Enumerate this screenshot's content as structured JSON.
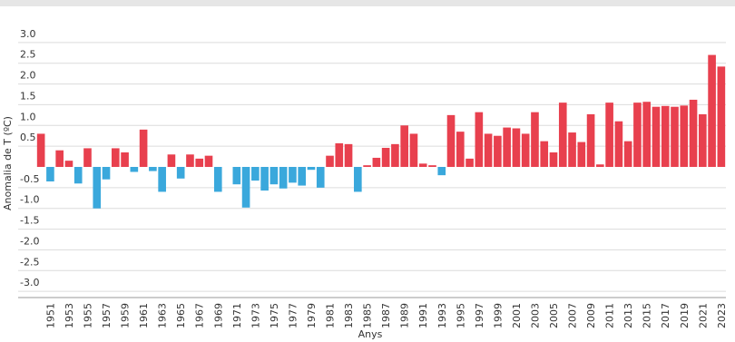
{
  "chart_data": {
    "type": "bar",
    "y_label": "Anomalia de T (ºC)",
    "x_label": "Anys",
    "categories": [
      null,
      "1951",
      null,
      "1953",
      null,
      "1955",
      null,
      "1957",
      null,
      "1959",
      null,
      "1961",
      null,
      "1963",
      null,
      "1965",
      null,
      "1967",
      null,
      "1969",
      null,
      "1971",
      null,
      "1973",
      null,
      "1975",
      null,
      "1977",
      null,
      "1979",
      null,
      "1981",
      null,
      "1983",
      null,
      "1985",
      null,
      "1987",
      null,
      "1989",
      null,
      "1991",
      null,
      "1993",
      null,
      "1995",
      null,
      "1997",
      null,
      "1999",
      null,
      "2001",
      null,
      "2003",
      null,
      "2005",
      null,
      "2007",
      null,
      "2009",
      null,
      "2011",
      null,
      "2013",
      null,
      "2015",
      null,
      "2017",
      null,
      "2019",
      null,
      "2021",
      null,
      "2023"
    ],
    "values": [
      0.8,
      -0.35,
      0.4,
      0.15,
      -0.4,
      0.45,
      -1.0,
      -0.3,
      0.45,
      0.35,
      -0.12,
      0.9,
      -0.1,
      -0.6,
      0.3,
      -0.28,
      0.3,
      0.2,
      0.27,
      -0.6,
      0,
      -0.42,
      -0.98,
      -0.33,
      -0.57,
      -0.42,
      -0.52,
      -0.38,
      -0.45,
      -0.07,
      -0.5,
      0.27,
      0.57,
      0.55,
      -0.6,
      0.04,
      0.22,
      0.46,
      0.55,
      1.0,
      0.8,
      0.08,
      0.04,
      -0.2,
      1.25,
      0.85,
      0.2,
      1.32,
      0.8,
      0.75,
      0.95,
      0.93,
      0.8,
      1.32,
      0.62,
      0.35,
      1.55,
      0.83,
      0.6,
      1.27,
      0.06,
      1.55,
      1.1,
      0.62,
      1.55,
      1.57,
      1.45,
      1.47,
      1.45,
      1.48,
      1.62,
      1.27,
      2.7,
      2.42
    ],
    "positive_color": "#e8404e",
    "negative_color": "#3aa8dc",
    "ylim": [
      -3.15,
      3.15
    ],
    "yticks": [
      {
        "value": 3,
        "label": "3.0"
      },
      {
        "value": 2.5,
        "label": "2.5"
      },
      {
        "value": 2,
        "label": "2.0"
      },
      {
        "value": 1.5,
        "label": "1.5"
      },
      {
        "value": 1,
        "label": "1.0"
      },
      {
        "value": 0.5,
        "label": "0.5"
      },
      {
        "value": -0.5,
        "label": "-0.5"
      },
      {
        "value": -1,
        "label": "-1.0"
      },
      {
        "value": -1.5,
        "label": "-1.5"
      },
      {
        "value": -2,
        "label": "-2.0"
      },
      {
        "value": -2.5,
        "label": "-2.5"
      },
      {
        "value": -3,
        "label": "-3.0"
      }
    ],
    "grid": true
  }
}
